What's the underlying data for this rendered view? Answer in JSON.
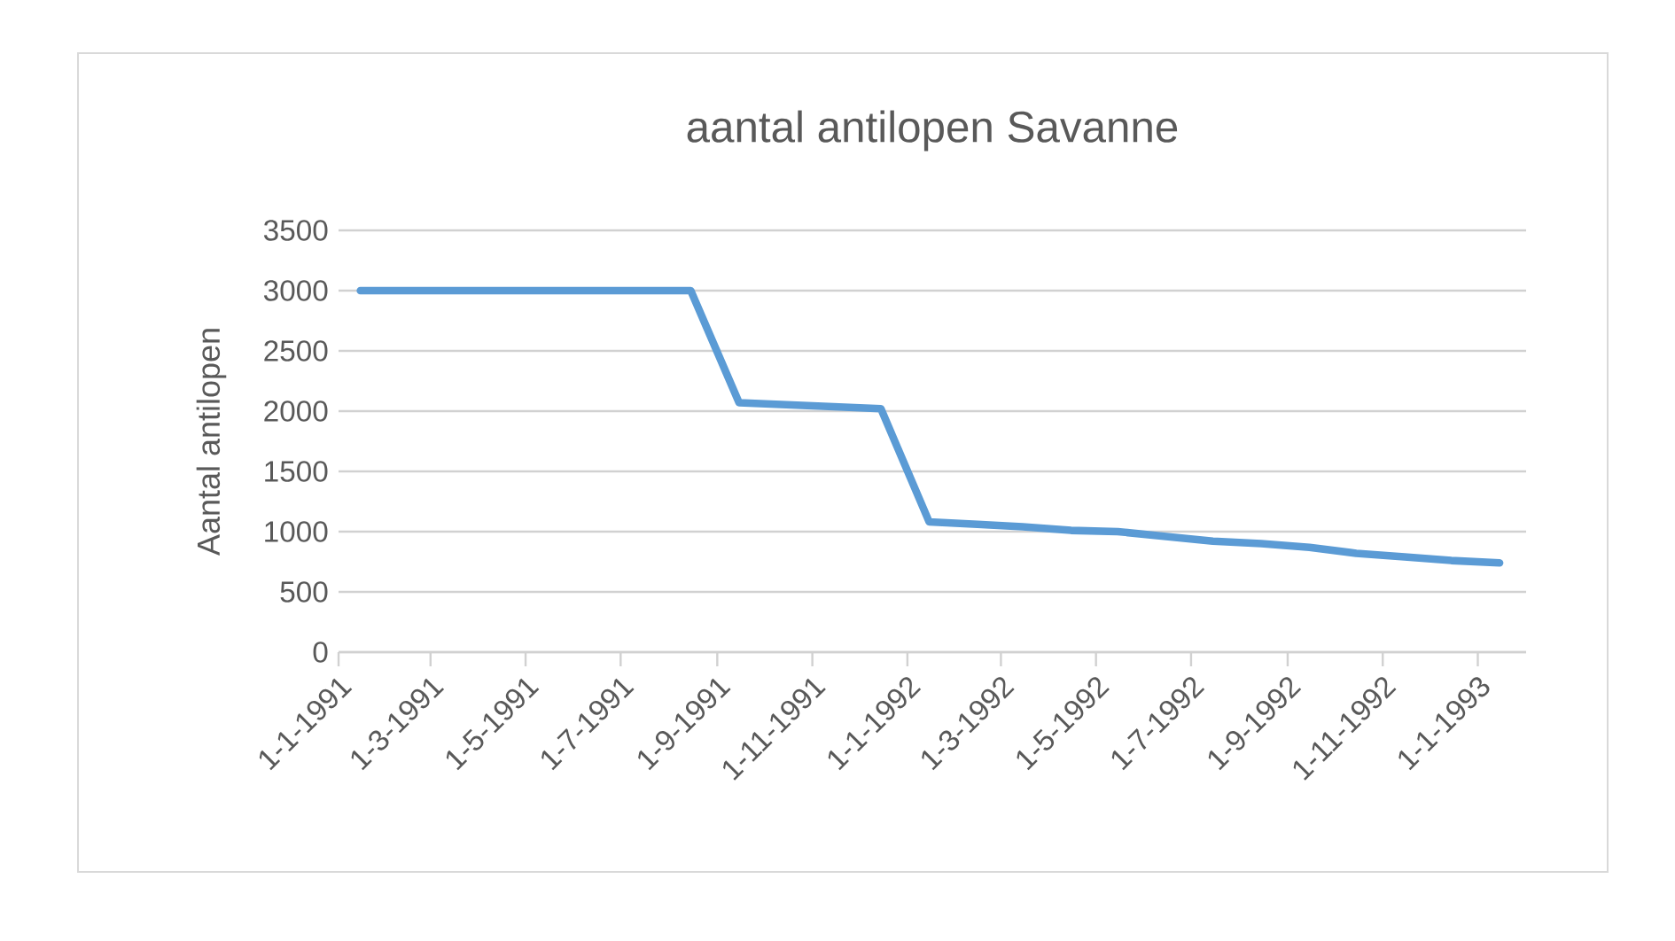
{
  "chart_data": {
    "type": "line",
    "title": "aantal antilopen Savanne",
    "ylabel": "Aantal antilopen",
    "x": [
      "1991-01-15",
      "1991-02-15",
      "1991-03-15",
      "1991-04-15",
      "1991-05-15",
      "1991-06-15",
      "1991-07-15",
      "1991-08-15",
      "1991-09-15",
      "1991-12-15",
      "1992-01-15",
      "1992-02-15",
      "1992-03-15",
      "1992-04-15",
      "1992-05-15",
      "1992-06-15",
      "1992-07-15",
      "1992-08-15",
      "1992-09-15",
      "1992-10-15",
      "1992-11-15",
      "1992-12-15",
      "1993-01-15"
    ],
    "series": [
      {
        "color": "#5b9bd5",
        "values": [
          3000,
          3000,
          3000,
          3000,
          3000,
          3000,
          3000,
          3000,
          2070,
          2020,
          1080,
          1060,
          1040,
          1010,
          1000,
          960,
          920,
          900,
          870,
          820,
          790,
          760,
          740
        ]
      }
    ],
    "xlim": [
      "1991-01-01",
      "1993-02-01"
    ],
    "xticks": [
      {
        "value": "1991-01-01",
        "label": "1-1-1991"
      },
      {
        "value": "1991-03-01",
        "label": "1-3-1991"
      },
      {
        "value": "1991-05-01",
        "label": "1-5-1991"
      },
      {
        "value": "1991-07-01",
        "label": "1-7-1991"
      },
      {
        "value": "1991-09-01",
        "label": "1-9-1991"
      },
      {
        "value": "1991-11-01",
        "label": "1-11-1991"
      },
      {
        "value": "1992-01-01",
        "label": "1-1-1992"
      },
      {
        "value": "1992-03-01",
        "label": "1-3-1992"
      },
      {
        "value": "1992-05-01",
        "label": "1-5-1992"
      },
      {
        "value": "1992-07-01",
        "label": "1-7-1992"
      },
      {
        "value": "1992-09-01",
        "label": "1-9-1992"
      },
      {
        "value": "1992-11-01",
        "label": "1-11-1992"
      },
      {
        "value": "1993-01-01",
        "label": "1-1-1993"
      }
    ],
    "ylim": [
      0,
      3500
    ],
    "yticks": [
      0,
      500,
      1000,
      1500,
      2000,
      2500,
      3000,
      3500
    ],
    "grid": "y",
    "marker": "none",
    "line_style": "solid"
  }
}
